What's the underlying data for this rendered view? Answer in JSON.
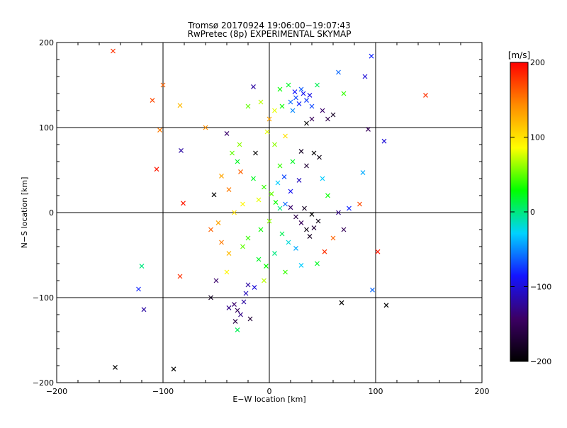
{
  "chart_data": {
    "type": "scatter",
    "title": "Tromsø 20170924 19:06:00−19:07:43",
    "subtitle": "RwPretec (8p) EXPERIMENTAL SKYMAP",
    "xlabel": "E−W location [km]",
    "ylabel": "N−S location [km]",
    "xlim": [
      -200,
      200
    ],
    "ylim": [
      -200,
      200
    ],
    "xticks": [
      -200,
      -100,
      0,
      100,
      200
    ],
    "yticks": [
      -200,
      -100,
      0,
      100,
      200
    ],
    "grid": true,
    "colorbar": {
      "label": "[m/s]",
      "min": -200,
      "max": 200,
      "ticks": [
        200,
        100,
        0,
        -100,
        -200
      ],
      "colormap": [
        "#000000",
        "#3c0064",
        "#1414ff",
        "#00d2ff",
        "#00ff00",
        "#ffff00",
        "#ff8c00",
        "#ff0000"
      ]
    },
    "points": [
      {
        "x": -147,
        "y": 190,
        "v": 180
      },
      {
        "x": -100,
        "y": 150,
        "v": 160
      },
      {
        "x": -110,
        "y": 132,
        "v": 170
      },
      {
        "x": -103,
        "y": 97,
        "v": 150
      },
      {
        "x": -84,
        "y": 126,
        "v": 120
      },
      {
        "x": -106,
        "y": 51,
        "v": 190
      },
      {
        "x": -81,
        "y": 11,
        "v": 190
      },
      {
        "x": -83,
        "y": 73,
        "v": -120
      },
      {
        "x": -60,
        "y": 100,
        "v": 140
      },
      {
        "x": -52,
        "y": 21,
        "v": -200
      },
      {
        "x": -40,
        "y": 93,
        "v": -140
      },
      {
        "x": -45,
        "y": 43,
        "v": 130
      },
      {
        "x": -38,
        "y": 27,
        "v": 150
      },
      {
        "x": -30,
        "y": 60,
        "v": 20
      },
      {
        "x": -27,
        "y": 48,
        "v": 160
      },
      {
        "x": -13,
        "y": 70,
        "v": -200
      },
      {
        "x": -48,
        "y": -12,
        "v": 130
      },
      {
        "x": -55,
        "y": -20,
        "v": 160
      },
      {
        "x": -25,
        "y": -40,
        "v": 50
      },
      {
        "x": -38,
        "y": -48,
        "v": 120
      },
      {
        "x": -20,
        "y": -30,
        "v": 40
      },
      {
        "x": -10,
        "y": -55,
        "v": 20
      },
      {
        "x": -3,
        "y": -63,
        "v": 30
      },
      {
        "x": 5,
        "y": -48,
        "v": 0
      },
      {
        "x": -120,
        "y": -63,
        "v": 0
      },
      {
        "x": -118,
        "y": -114,
        "v": -120
      },
      {
        "x": -123,
        "y": -90,
        "v": -80
      },
      {
        "x": -84,
        "y": -75,
        "v": 180
      },
      {
        "x": -55,
        "y": -100,
        "v": -180
      },
      {
        "x": -145,
        "y": -182,
        "v": -200
      },
      {
        "x": -90,
        "y": -184,
        "v": -200
      },
      {
        "x": -38,
        "y": -112,
        "v": -130
      },
      {
        "x": -33,
        "y": -108,
        "v": -140
      },
      {
        "x": -30,
        "y": -115,
        "v": -150
      },
      {
        "x": -27,
        "y": -120,
        "v": -130
      },
      {
        "x": -24,
        "y": -105,
        "v": -120
      },
      {
        "x": -32,
        "y": -128,
        "v": -160
      },
      {
        "x": -20,
        "y": -85,
        "v": -120
      },
      {
        "x": -22,
        "y": -95,
        "v": -110
      },
      {
        "x": -14,
        "y": -88,
        "v": -100
      },
      {
        "x": -18,
        "y": -125,
        "v": -170
      },
      {
        "x": -30,
        "y": -138,
        "v": 10
      },
      {
        "x": 102,
        "y": -46,
        "v": 190
      },
      {
        "x": 110,
        "y": -109,
        "v": -200
      },
      {
        "x": 68,
        "y": -106,
        "v": -200
      },
      {
        "x": 97,
        "y": -91,
        "v": -60
      },
      {
        "x": 60,
        "y": -30,
        "v": 160
      },
      {
        "x": 52,
        "y": -46,
        "v": 180
      },
      {
        "x": 45,
        "y": -60,
        "v": 20
      },
      {
        "x": 35,
        "y": -20,
        "v": -190
      },
      {
        "x": 38,
        "y": -28,
        "v": -180
      },
      {
        "x": 42,
        "y": -18,
        "v": -170
      },
      {
        "x": 30,
        "y": -12,
        "v": -150
      },
      {
        "x": 25,
        "y": -5,
        "v": -160
      },
      {
        "x": 46,
        "y": -10,
        "v": -190
      },
      {
        "x": 40,
        "y": -2,
        "v": -200
      },
      {
        "x": 33,
        "y": 5,
        "v": -180
      },
      {
        "x": 20,
        "y": 6,
        "v": -140
      },
      {
        "x": 15,
        "y": 10,
        "v": -60
      },
      {
        "x": 10,
        "y": 5,
        "v": 0
      },
      {
        "x": 6,
        "y": 12,
        "v": 30
      },
      {
        "x": 2,
        "y": 22,
        "v": 50
      },
      {
        "x": -5,
        "y": 30,
        "v": 40
      },
      {
        "x": -10,
        "y": 15,
        "v": 80
      },
      {
        "x": -15,
        "y": 40,
        "v": 20
      },
      {
        "x": 0,
        "y": -10,
        "v": 60
      },
      {
        "x": -8,
        "y": -20,
        "v": 30
      },
      {
        "x": 12,
        "y": -25,
        "v": 10
      },
      {
        "x": 18,
        "y": -35,
        "v": -20
      },
      {
        "x": 25,
        "y": -42,
        "v": -40
      },
      {
        "x": 8,
        "y": 35,
        "v": -30
      },
      {
        "x": 14,
        "y": 42,
        "v": -70
      },
      {
        "x": 20,
        "y": 25,
        "v": -90
      },
      {
        "x": 28,
        "y": 38,
        "v": -110
      },
      {
        "x": 35,
        "y": 55,
        "v": -170
      },
      {
        "x": 42,
        "y": 70,
        "v": -200
      },
      {
        "x": 47,
        "y": 65,
        "v": -190
      },
      {
        "x": 30,
        "y": 72,
        "v": -180
      },
      {
        "x": 22,
        "y": 60,
        "v": 20
      },
      {
        "x": 10,
        "y": 55,
        "v": 40
      },
      {
        "x": 5,
        "y": 80,
        "v": 60
      },
      {
        "x": -2,
        "y": 95,
        "v": 80
      },
      {
        "x": 15,
        "y": 90,
        "v": 100
      },
      {
        "x": 0,
        "y": 110,
        "v": 130
      },
      {
        "x": 5,
        "y": 120,
        "v": 80
      },
      {
        "x": 12,
        "y": 125,
        "v": 30
      },
      {
        "x": 20,
        "y": 130,
        "v": -60
      },
      {
        "x": 25,
        "y": 135,
        "v": -70
      },
      {
        "x": 28,
        "y": 128,
        "v": -80
      },
      {
        "x": 32,
        "y": 140,
        "v": -90
      },
      {
        "x": 35,
        "y": 132,
        "v": -75
      },
      {
        "x": 30,
        "y": 145,
        "v": -65
      },
      {
        "x": 24,
        "y": 142,
        "v": -85
      },
      {
        "x": 38,
        "y": 138,
        "v": -95
      },
      {
        "x": 40,
        "y": 125,
        "v": -70
      },
      {
        "x": 22,
        "y": 120,
        "v": -50
      },
      {
        "x": 18,
        "y": 150,
        "v": 20
      },
      {
        "x": 10,
        "y": 145,
        "v": 30
      },
      {
        "x": 45,
        "y": 150,
        "v": 10
      },
      {
        "x": 50,
        "y": 120,
        "v": -140
      },
      {
        "x": 55,
        "y": 110,
        "v": -160
      },
      {
        "x": 60,
        "y": 115,
        "v": -180
      },
      {
        "x": 40,
        "y": 110,
        "v": -150
      },
      {
        "x": 35,
        "y": 105,
        "v": -200
      },
      {
        "x": -15,
        "y": 148,
        "v": -120
      },
      {
        "x": -8,
        "y": 130,
        "v": 70
      },
      {
        "x": -20,
        "y": 125,
        "v": 50
      },
      {
        "x": 65,
        "y": 165,
        "v": -60
      },
      {
        "x": 96,
        "y": 184,
        "v": -80
      },
      {
        "x": 70,
        "y": 140,
        "v": 40
      },
      {
        "x": 90,
        "y": 160,
        "v": -100
      },
      {
        "x": 93,
        "y": 98,
        "v": -150
      },
      {
        "x": 108,
        "y": 84,
        "v": -100
      },
      {
        "x": 147,
        "y": 138,
        "v": 180
      },
      {
        "x": 88,
        "y": 47,
        "v": -40
      },
      {
        "x": 85,
        "y": 10,
        "v": 170
      },
      {
        "x": 75,
        "y": 5,
        "v": -80
      },
      {
        "x": 65,
        "y": 0,
        "v": -130
      },
      {
        "x": 70,
        "y": -20,
        "v": -150
      },
      {
        "x": 55,
        "y": 20,
        "v": 30
      },
      {
        "x": 50,
        "y": 40,
        "v": -30
      },
      {
        "x": -28,
        "y": 80,
        "v": 60
      },
      {
        "x": -35,
        "y": 70,
        "v": 50
      },
      {
        "x": -25,
        "y": 10,
        "v": 90
      },
      {
        "x": -33,
        "y": 0,
        "v": 100
      },
      {
        "x": -45,
        "y": -35,
        "v": 150
      },
      {
        "x": -5,
        "y": -80,
        "v": 70
      },
      {
        "x": 15,
        "y": -70,
        "v": 40
      },
      {
        "x": 30,
        "y": -62,
        "v": -30
      },
      {
        "x": -40,
        "y": -70,
        "v": 90
      },
      {
        "x": -50,
        "y": -80,
        "v": -140
      }
    ]
  }
}
